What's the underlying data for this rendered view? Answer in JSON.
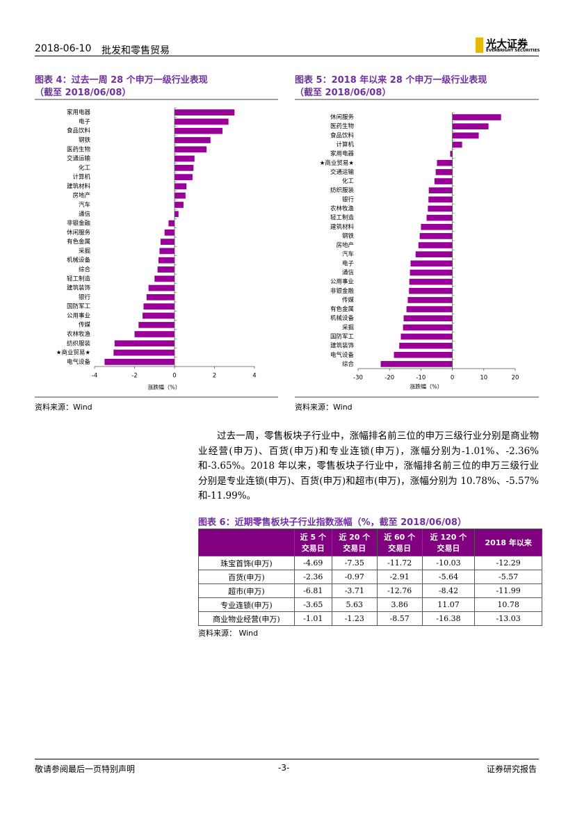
{
  "header": {
    "date": "2018-06-10",
    "industry": "批发和零售贸易",
    "logo_cn": "光大证券",
    "logo_en": "EVERBRIGHT SECURITIES"
  },
  "chart_data": [
    {
      "type": "bar",
      "orientation": "horizontal",
      "title": "图表 4：过去一周 28 个申万一级行业表现",
      "subtitle": "（截至 2018/06/08）",
      "categories": [
        "家用电器",
        "电子",
        "食品饮料",
        "钢铁",
        "医药生物",
        "交通运输",
        "化工",
        "计算机",
        "建筑材料",
        "房地产",
        "汽车",
        "通信",
        "非银金融",
        "休闲服务",
        "有色金属",
        "采掘",
        "机械设备",
        "综合",
        "轻工制造",
        "建筑装饰",
        "银行",
        "国防军工",
        "公用事业",
        "传媒",
        "农林牧渔",
        "纺织服装",
        "★商业贸易★",
        "电气设备"
      ],
      "values": [
        3.0,
        2.7,
        2.4,
        1.8,
        1.6,
        1.0,
        0.95,
        0.9,
        0.6,
        0.55,
        0.45,
        0.2,
        -0.3,
        -0.5,
        -0.7,
        -0.75,
        -0.8,
        -0.85,
        -1.0,
        -1.3,
        -1.4,
        -1.55,
        -1.6,
        -1.8,
        -2.0,
        -3.0,
        -3.05,
        -3.5
      ],
      "color": "#990099",
      "xlabel": "涨跌幅（%）",
      "xlim": [
        -4,
        4
      ],
      "xticks": [
        -4,
        -2,
        0,
        2,
        4
      ],
      "source": "资料来源：Wind"
    },
    {
      "type": "bar",
      "orientation": "horizontal",
      "title": "图表 5：2018 年以来 28 个申万一级行业表现",
      "subtitle": "（截至 2018/06/08）",
      "categories": [
        "休闲服务",
        "医药生物",
        "食品饮料",
        "计算机",
        "家用电器",
        "★商业贸易★",
        "交通运输",
        "化工",
        "纺织服装",
        "银行",
        "农林牧渔",
        "轻工制造",
        "建筑材料",
        "钢铁",
        "房地产",
        "汽车",
        "电子",
        "通信",
        "公用事业",
        "非银金融",
        "传媒",
        "有色金属",
        "机械设备",
        "采掘",
        "国防军工",
        "建筑装饰",
        "电气设备",
        "综合"
      ],
      "values": [
        15.5,
        11.5,
        8.4,
        3.1,
        -0.7,
        -4.9,
        -5.3,
        -5.7,
        -7.5,
        -7.6,
        -7.8,
        -8.2,
        -10.0,
        -10.4,
        -10.8,
        -11.7,
        -13.3,
        -13.5,
        -13.7,
        -13.8,
        -14.2,
        -14.6,
        -15.5,
        -15.7,
        -16.4,
        -16.9,
        -18.6,
        -22.8
      ],
      "color": "#990099",
      "xlabel": "涨跌幅（%）",
      "xlim": [
        -30,
        20
      ],
      "xticks": [
        -30,
        -20,
        -10,
        0,
        10,
        20
      ],
      "source": "资料来源：Wind"
    }
  ],
  "paragraph": "过去一周，零售板块子行业中，涨幅排名前三位的申万三级行业分别是商业物业经营(申万)、百货(申万)和专业连锁(申万)，涨幅分别为-1.01%、-2.36%和-3.65%。2018 年以来，零售板块子行业中，涨幅排名前三位的申万三级行业分别是专业连锁(申万)、百货(申万)和超市(申万)，涨幅分别为 10.78%、-5.57%和-11.99%。",
  "table": {
    "title": "图表 6：近期零售板块子行业指数涨幅（%，截至 2018/06/08）",
    "columns": [
      [
        "近 5 个",
        "交易日"
      ],
      [
        "近 20 个",
        "交易日"
      ],
      [
        "近 60 个",
        "交易日"
      ],
      [
        "近 120 个",
        "交易日"
      ],
      "2018 年以来"
    ],
    "rows": [
      {
        "name": "珠宝首饰(申万)",
        "values": [
          -4.69,
          -7.35,
          -11.72,
          -10.03,
          -12.29
        ]
      },
      {
        "name": "百货(申万)",
        "values": [
          -2.36,
          -0.97,
          -2.91,
          -5.64,
          -5.57
        ]
      },
      {
        "name": "超市(申万)",
        "values": [
          -6.81,
          -3.71,
          -12.76,
          -8.42,
          -11.99
        ]
      },
      {
        "name": "专业连锁(申万)",
        "values": [
          -3.65,
          5.63,
          3.86,
          11.07,
          10.78
        ]
      },
      {
        "name": "商业物业经营(申万)",
        "values": [
          -1.01,
          -1.23,
          -8.57,
          -16.38,
          -13.03
        ]
      }
    ],
    "source": "资料来源：   Wind"
  },
  "footer": {
    "left": "敬请参阅最后一页特别声明",
    "center": "-3-",
    "right": "证券研究报告"
  }
}
